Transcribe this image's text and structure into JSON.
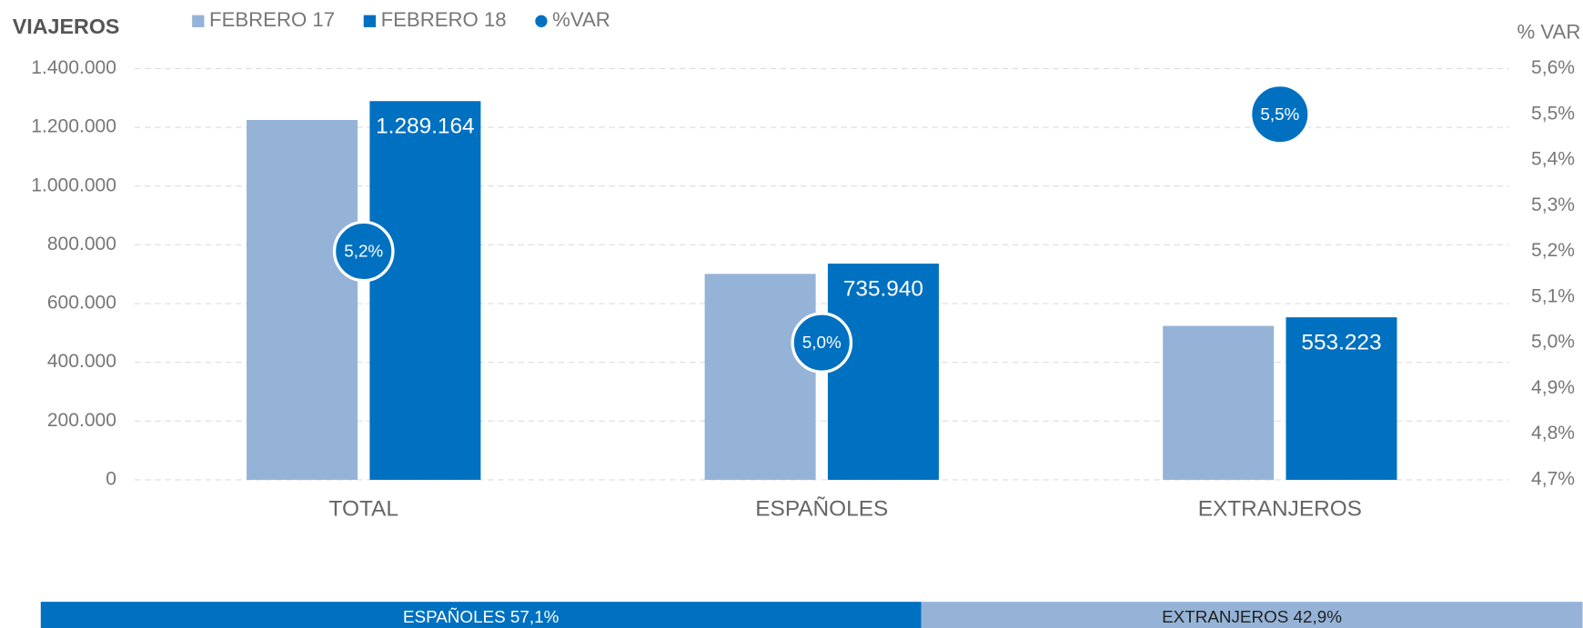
{
  "chart_data": {
    "type": "bar",
    "y_title": "VIAJEROS",
    "y2_title": "% VAR",
    "categories": [
      "TOTAL",
      "ESPAÑOLES",
      "EXTRANJEROS"
    ],
    "series": [
      {
        "name": "FEBRERO 17",
        "color": "#95b3d7",
        "values": [
          1225000,
          701000,
          524000
        ]
      },
      {
        "name": "FEBRERO 18",
        "color": "#0070c0",
        "values": [
          1289164,
          735940,
          553223
        ],
        "value_labels": [
          "1.289.164",
          "735.940",
          "553.223"
        ]
      },
      {
        "name": "%VAR",
        "type": "scatter",
        "axis": "y2",
        "color": "#0070c0",
        "values": [
          5.2,
          5.0,
          5.5
        ],
        "value_labels": [
          "5,2%",
          "5,0%",
          "5,5%"
        ]
      }
    ],
    "ylim": [
      0,
      1400000
    ],
    "yticks": [
      0,
      {
        "value": 200000,
        "label": "200.000"
      },
      {
        "value": 400000,
        "label": "400.000"
      },
      {
        "value": 600000,
        "label": "600.000"
      },
      {
        "value": 800000,
        "label": "800.000"
      },
      {
        "value": 1000000,
        "label": "1.000.000"
      },
      {
        "value": 1200000,
        "label": "1.200.000"
      },
      {
        "value": 1400000,
        "label": "1.400.000"
      }
    ],
    "y2lim": [
      4.7,
      5.6
    ],
    "y2ticks": [
      {
        "value": 4.7,
        "label": "4,7%"
      },
      {
        "value": 4.8,
        "label": "4,8%"
      },
      {
        "value": 4.9,
        "label": "4,9%"
      },
      {
        "value": 5.0,
        "label": "5,0%"
      },
      {
        "value": 5.1,
        "label": "5,1%"
      },
      {
        "value": 5.2,
        "label": "5,2%"
      },
      {
        "value": 5.3,
        "label": "5,3%"
      },
      {
        "value": 5.4,
        "label": "5,4%"
      },
      {
        "value": 5.5,
        "label": "5,5%"
      },
      {
        "value": 5.6,
        "label": "5,6%"
      }
    ],
    "grid": true,
    "legend": "top"
  },
  "share": {
    "labels": [
      "ESPAÑOLES 57,1%",
      "EXTRANJEROS 42,9%"
    ],
    "values": [
      57.1,
      42.9
    ],
    "colors": [
      "#0070c0",
      "#95b3d7"
    ],
    "text_colors": [
      "#ffffff",
      "#222222"
    ]
  }
}
